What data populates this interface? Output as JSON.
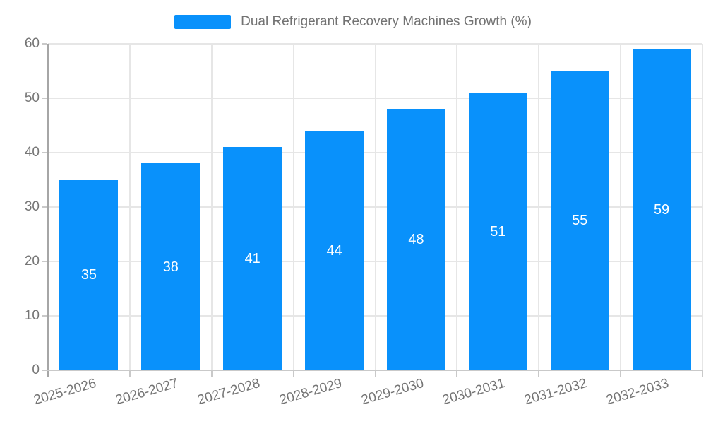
{
  "legend": {
    "label": "Dual Refrigerant Recovery Machines Growth (%)"
  },
  "chart_data": {
    "type": "bar",
    "title": "Dual Refrigerant Recovery Machines Growth (%)",
    "categories": [
      "2025-2026",
      "2026-2027",
      "2027-2028",
      "2028-2029",
      "2029-2030",
      "2030-2031",
      "2031-2032",
      "2032-2033"
    ],
    "values": [
      35,
      38,
      41,
      44,
      48,
      51,
      55,
      59
    ],
    "xlabel": "",
    "ylabel": "",
    "ylim": [
      0,
      60
    ],
    "yticks": [
      0,
      10,
      20,
      30,
      40,
      50,
      60
    ],
    "grid": true,
    "legend_position": "top-center",
    "value_labels": "inside-center",
    "bar_color": "#0991fb",
    "value_label_color": "#ffffff"
  },
  "colors": {
    "bar": "#0991fb",
    "grid": "#e6e6e6",
    "y_axis_line": "#a6a6a6",
    "x_axis_line": "#c9c9c9",
    "tick": "#c9c9c9",
    "axis_text": "#757575",
    "legend_text": "#737373",
    "background": "#ffffff"
  }
}
